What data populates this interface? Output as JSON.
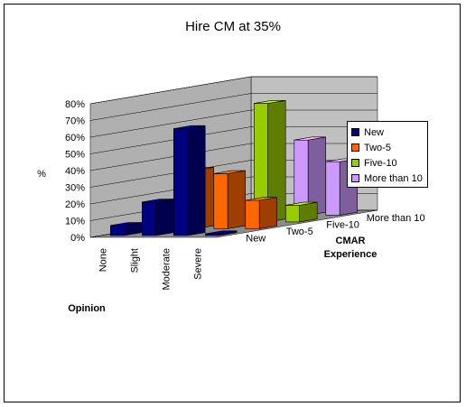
{
  "chart_data": {
    "type": "bar",
    "title": "Hire CM at 35%",
    "ylabel": "%",
    "xlabel": "Opinion",
    "zlabel_line1": "CMAR",
    "zlabel_line2": "Experience",
    "categories": [
      "None",
      "Slight",
      "Moderate",
      "Severe"
    ],
    "yticks": [
      "0%",
      "10%",
      "20%",
      "30%",
      "40%",
      "50%",
      "60%",
      "70%",
      "80%"
    ],
    "ylim": [
      0,
      80
    ],
    "depth_labels": [
      "New",
      "Two-5",
      "Five-10",
      "More than 10"
    ],
    "series": [
      {
        "name": "New",
        "color": "#000080",
        "values": [
          6,
          20,
          64,
          1
        ]
      },
      {
        "name": "Two-5",
        "color": "#FF6600",
        "values": [
          5,
          35,
          33,
          17
        ]
      },
      {
        "name": "Five-10",
        "color": "#99CC00",
        "values": [
          10,
          0,
          71,
          10
        ]
      },
      {
        "name": "More than 10",
        "color": "#CC99FF",
        "values": [
          0,
          0,
          45,
          32
        ]
      }
    ],
    "legend_position": "right",
    "grid": true
  }
}
